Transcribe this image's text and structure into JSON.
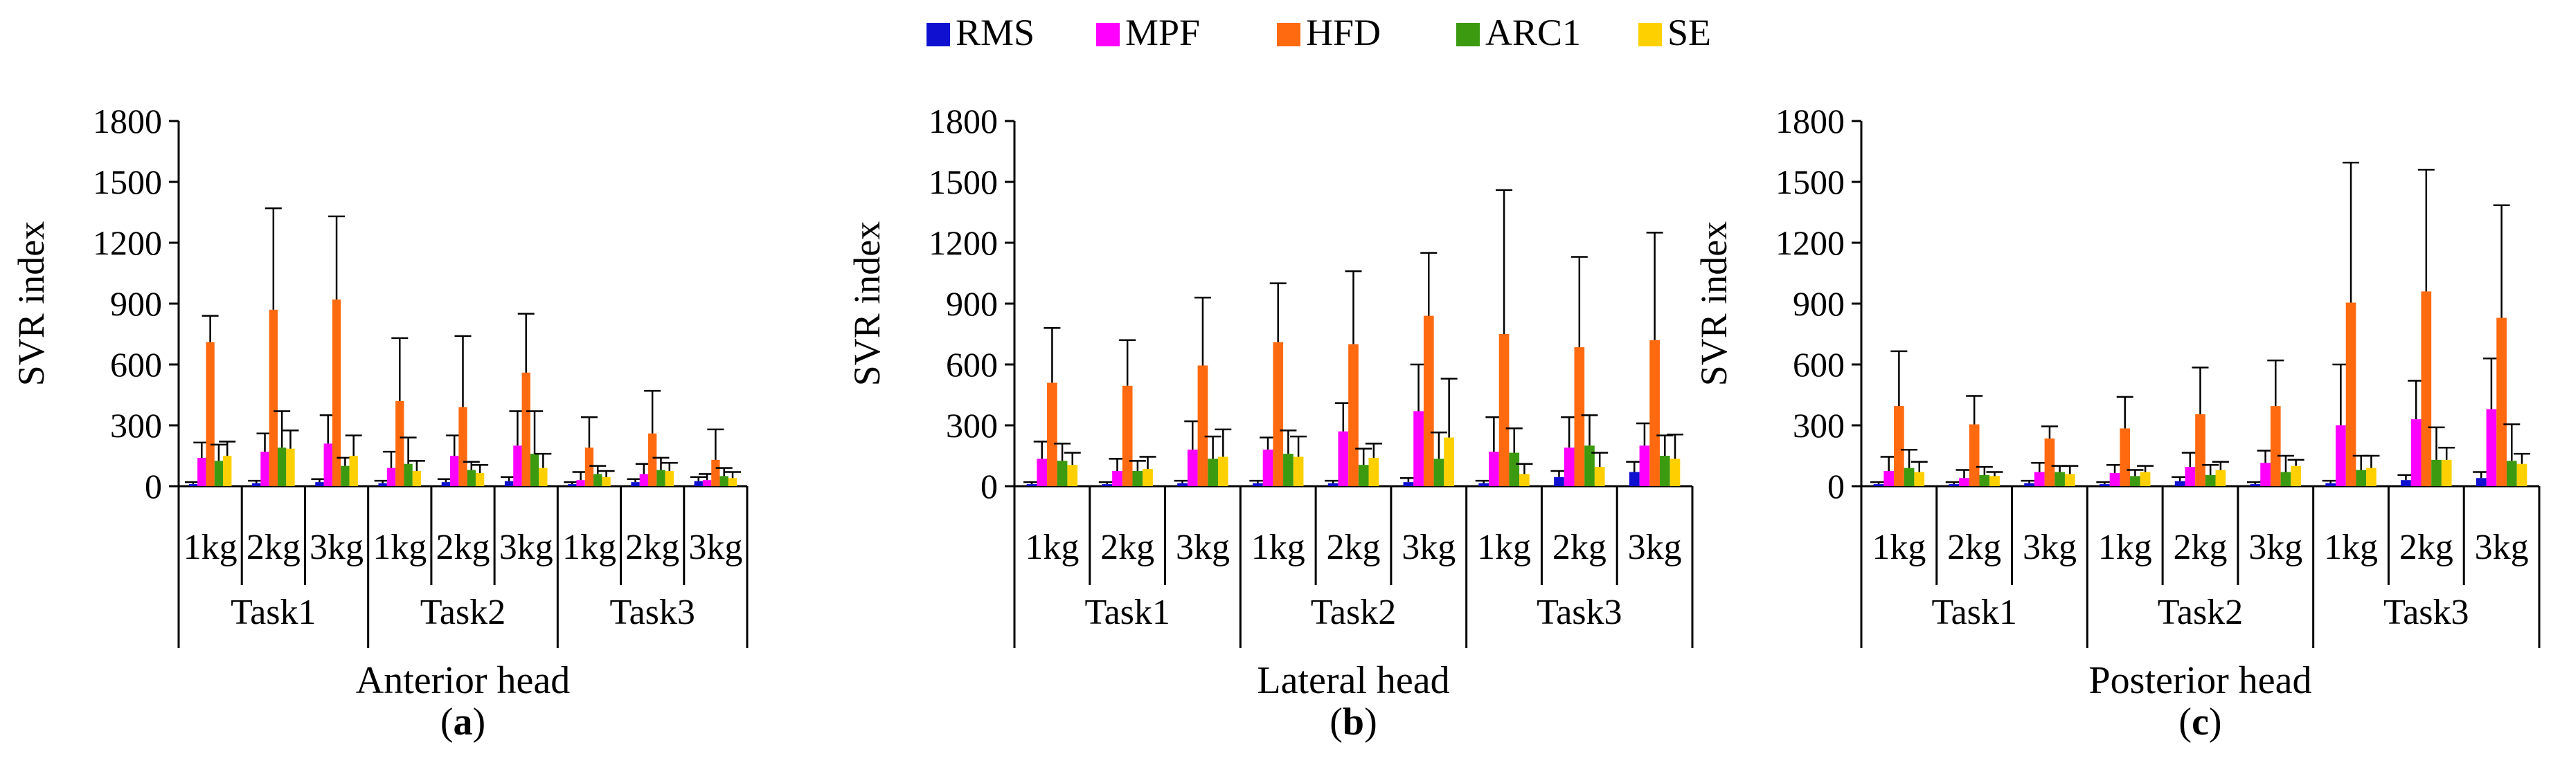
{
  "legend": {
    "items": [
      {
        "name": "RMS",
        "color": "#1010d0"
      },
      {
        "name": "MPF",
        "color": "#ff00ff"
      },
      {
        "name": "HFD",
        "color": "#ff6a10"
      },
      {
        "name": "ARC1",
        "color": "#3c9a10"
      },
      {
        "name": "SE",
        "color": "#ffd000"
      }
    ]
  },
  "chart_data": [
    {
      "type": "bar",
      "title": "Anterior head",
      "panel_label": "a",
      "ylabel": "SVR index",
      "ylim": [
        0,
        1800
      ],
      "yticks": [
        "0",
        "300",
        "600",
        "900",
        "1200",
        "1500",
        "1800"
      ],
      "groups": [
        "Task1",
        "Task2",
        "Task3"
      ],
      "categories": [
        "1kg",
        "2kg",
        "3kg",
        "1kg",
        "2kg",
        "3kg",
        "1kg",
        "2kg",
        "3kg"
      ],
      "series": [
        {
          "name": "RMS",
          "values": [
            10,
            15,
            20,
            15,
            20,
            25,
            10,
            20,
            25
          ],
          "errors": [
            10,
            12,
            15,
            12,
            15,
            20,
            10,
            15,
            20
          ]
        },
        {
          "name": "MPF",
          "values": [
            140,
            170,
            210,
            90,
            150,
            200,
            30,
            60,
            30
          ],
          "errors": [
            75,
            90,
            140,
            80,
            100,
            170,
            40,
            50,
            30
          ]
        },
        {
          "name": "HFD",
          "values": [
            710,
            870,
            920,
            420,
            390,
            560,
            190,
            260,
            130
          ],
          "errors": [
            130,
            500,
            410,
            310,
            350,
            290,
            150,
            210,
            150
          ]
        },
        {
          "name": "ARC1",
          "values": [
            125,
            190,
            100,
            110,
            80,
            160,
            60,
            80,
            50
          ],
          "errors": [
            80,
            180,
            40,
            130,
            40,
            210,
            40,
            60,
            40
          ]
        },
        {
          "name": "SE",
          "values": [
            150,
            185,
            150,
            75,
            65,
            90,
            45,
            75,
            40
          ],
          "errors": [
            70,
            90,
            100,
            50,
            40,
            70,
            30,
            40,
            30
          ]
        }
      ]
    },
    {
      "type": "bar",
      "title": "Lateral head",
      "panel_label": "b",
      "ylabel": "SVR index",
      "ylim": [
        0,
        1800
      ],
      "yticks": [
        "0",
        "300",
        "600",
        "900",
        "1200",
        "1500",
        "1800"
      ],
      "groups": [
        "Task1",
        "Task2",
        "Task3"
      ],
      "categories": [
        "1kg",
        "2kg",
        "3kg",
        "1kg",
        "2kg",
        "3kg",
        "1kg",
        "2kg",
        "3kg"
      ],
      "series": [
        {
          "name": "RMS",
          "values": [
            10,
            10,
            15,
            15,
            15,
            20,
            15,
            45,
            70
          ],
          "errors": [
            10,
            10,
            12,
            12,
            12,
            20,
            12,
            30,
            50
          ]
        },
        {
          "name": "MPF",
          "values": [
            135,
            75,
            180,
            180,
            270,
            370,
            170,
            190,
            200
          ],
          "errors": [
            85,
            60,
            140,
            60,
            140,
            230,
            170,
            150,
            110
          ]
        },
        {
          "name": "HFD",
          "values": [
            510,
            495,
            595,
            710,
            700,
            840,
            750,
            685,
            720
          ],
          "errors": [
            270,
            225,
            335,
            290,
            360,
            310,
            710,
            445,
            530
          ]
        },
        {
          "name": "ARC1",
          "values": [
            125,
            75,
            135,
            160,
            105,
            135,
            165,
            200,
            150
          ],
          "errors": [
            85,
            50,
            110,
            115,
            80,
            130,
            120,
            150,
            100
          ]
        },
        {
          "name": "SE",
          "values": [
            105,
            85,
            145,
            145,
            140,
            240,
            60,
            95,
            135
          ],
          "errors": [
            60,
            60,
            135,
            100,
            70,
            290,
            50,
            70,
            120
          ]
        }
      ]
    },
    {
      "type": "bar",
      "title": "Posterior head",
      "panel_label": "c",
      "ylabel": "SVR index",
      "ylim": [
        0,
        1800
      ],
      "yticks": [
        "0",
        "300",
        "600",
        "900",
        "1200",
        "1500",
        "1800"
      ],
      "groups": [
        "Task1",
        "Task2",
        "Task3"
      ],
      "categories": [
        "1kg",
        "2kg",
        "3kg",
        "1kg",
        "2kg",
        "3kg",
        "1kg",
        "2kg",
        "3kg"
      ],
      "series": [
        {
          "name": "RMS",
          "values": [
            10,
            10,
            15,
            10,
            25,
            10,
            15,
            30,
            40
          ],
          "errors": [
            10,
            10,
            12,
            10,
            20,
            10,
            12,
            25,
            30
          ]
        },
        {
          "name": "MPF",
          "values": [
            75,
            40,
            70,
            65,
            95,
            115,
            300,
            330,
            380
          ],
          "errors": [
            70,
            40,
            45,
            40,
            70,
            60,
            300,
            190,
            250
          ]
        },
        {
          "name": "HFD",
          "values": [
            395,
            305,
            235,
            285,
            355,
            395,
            905,
            960,
            830
          ],
          "errors": [
            270,
            140,
            60,
            155,
            230,
            225,
            690,
            600,
            555
          ]
        },
        {
          "name": "ARC1",
          "values": [
            90,
            55,
            70,
            50,
            55,
            70,
            80,
            130,
            125
          ],
          "errors": [
            90,
            40,
            30,
            30,
            50,
            80,
            70,
            160,
            180
          ]
        },
        {
          "name": "SE",
          "values": [
            70,
            50,
            60,
            70,
            80,
            100,
            90,
            130,
            110
          ],
          "errors": [
            50,
            20,
            40,
            30,
            40,
            30,
            60,
            60,
            50
          ]
        }
      ]
    }
  ]
}
